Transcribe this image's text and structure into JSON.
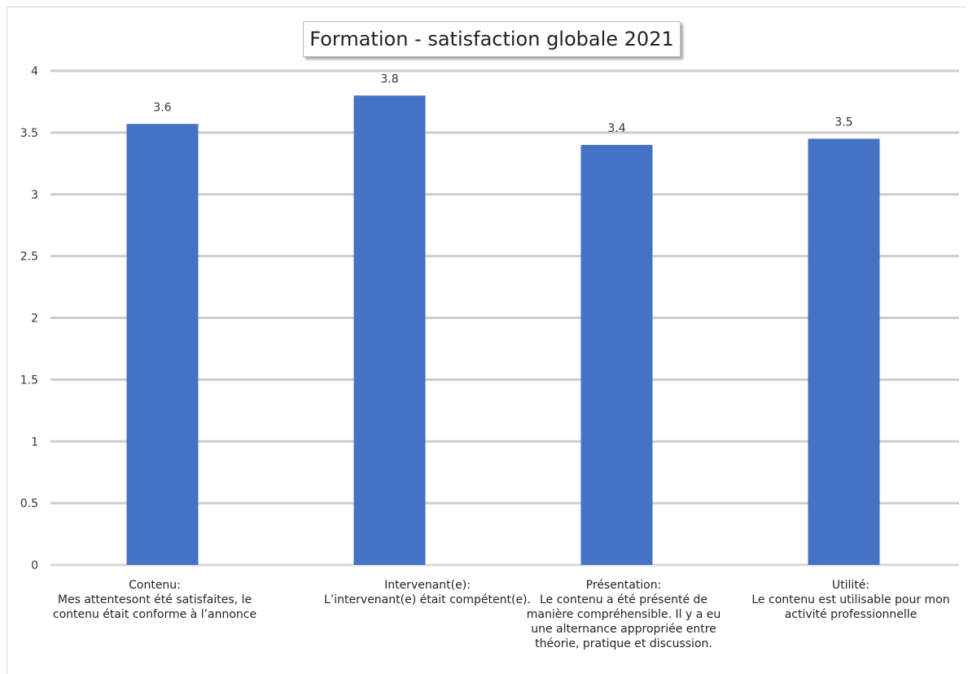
{
  "chart_data": {
    "type": "bar",
    "title": "Formation - satisfaction globale  2021",
    "categories": [
      "Contenu:\nMes attentesont été satisfaites, le\ncontenu était conforme à l’annonce",
      "Intervenant(e):\nL’intervenant(e) était compétent(e).",
      "Présentation:\nLe contenu a été présenté de\nmanière compréhensible. Il y a eu\nune alternance appropriée entre\nthéorie, pratique et discussion.",
      "Utilité:\nLe contenu est utilisable pour mon\nactivité professionnelle"
    ],
    "values": [
      3.57,
      3.8,
      3.4,
      3.45
    ],
    "data_labels": [
      "3.6",
      "3.8",
      "3.4",
      "3.5"
    ],
    "ylim": [
      0,
      4
    ],
    "yticks": [
      "0",
      "0.5",
      "1",
      "1.5",
      "2",
      "2.5",
      "3",
      "3.5",
      "4"
    ],
    "xlabel": "",
    "ylabel": "",
    "grid": true,
    "bar_color": "#4472C4",
    "grid_color": "#c8c8c8"
  }
}
